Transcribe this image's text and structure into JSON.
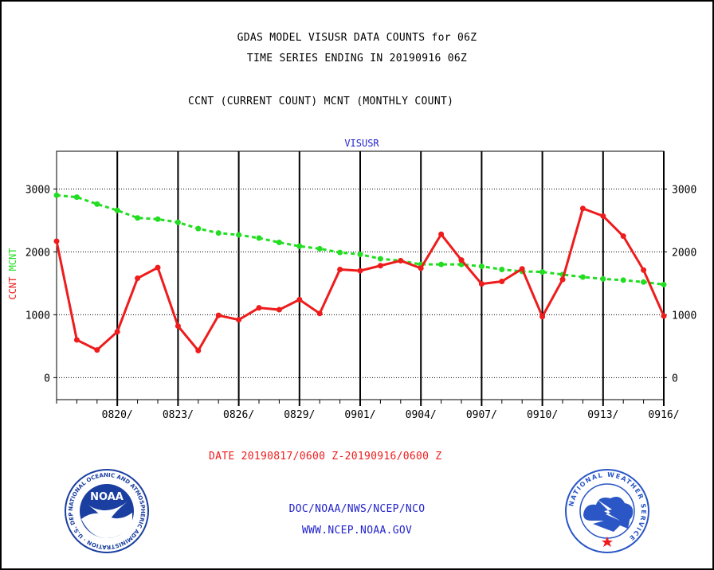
{
  "header": {
    "title_line1": "GDAS MODEL VISUSR DATA COUNTS for 06Z",
    "title_line2": "TIME SERIES ENDING IN 20190916 06Z",
    "subtitle": "CCNT (CURRENT COUNT) MCNT (MONTHLY COUNT)"
  },
  "footer": {
    "date_range": "DATE 20190817/0600 Z-20190916/0600 Z",
    "org_line": "DOC/NOAA/NWS/NCEP/NCO",
    "url_line": "WWW.NCEP.NOAA.GOV",
    "noaa_logo_text": "NOAA",
    "noaa_ring_text": "NATIONAL OCEANIC AND ATMOSPHERIC ADMINISTRATION · U.S. DEPARTMENT OF COMMERCE ·",
    "nws_ring_text": "NATIONAL WEATHER SERVICE"
  },
  "colors": {
    "ccnt": "#ee1c1c",
    "mcnt": "#22dd22",
    "inner_title": "#2222cc",
    "footer_red": "#ee1c1c",
    "footer_blue": "#2222cc",
    "noaa_blue": "#1a3fa0",
    "nws_blue": "#2a56c6"
  },
  "chart_data": {
    "type": "line",
    "title": "VISUSR",
    "ylabel_left": [
      "CCNT",
      "MCNT"
    ],
    "ylim": [
      -350,
      3600
    ],
    "yticks": [
      0,
      1000,
      2000,
      3000
    ],
    "x_ticks": [
      "0820/",
      "0823/",
      "0826/",
      "0829/",
      "0901/",
      "0904/",
      "0907/",
      "0910/",
      "0913/",
      "0916/"
    ],
    "x": [
      "0817",
      "0818",
      "0819",
      "0820",
      "0821",
      "0822",
      "0823",
      "0824",
      "0825",
      "0826",
      "0827",
      "0828",
      "0829",
      "0830",
      "0831",
      "0901",
      "0902",
      "0903",
      "0904",
      "0905",
      "0906",
      "0907",
      "0908",
      "0909",
      "0910",
      "0911",
      "0912",
      "0913",
      "0914",
      "0915",
      "0916"
    ],
    "grid": true,
    "series": [
      {
        "name": "CCNT",
        "values": [
          2170,
          600,
          440,
          730,
          1580,
          1750,
          820,
          430,
          990,
          920,
          1110,
          1080,
          1240,
          1020,
          1720,
          1700,
          1780,
          1860,
          1740,
          2280,
          1870,
          1490,
          1530,
          1730,
          970,
          1560,
          2690,
          2570,
          2250,
          1710,
          980
        ]
      },
      {
        "name": "MCNT",
        "values": [
          2900,
          2870,
          2760,
          2660,
          2540,
          2520,
          2470,
          2370,
          2300,
          2270,
          2220,
          2150,
          2090,
          2050,
          1990,
          1960,
          1890,
          1860,
          1800,
          1800,
          1800,
          1770,
          1720,
          1690,
          1680,
          1640,
          1600,
          1570,
          1550,
          1520,
          1480
        ]
      }
    ]
  }
}
